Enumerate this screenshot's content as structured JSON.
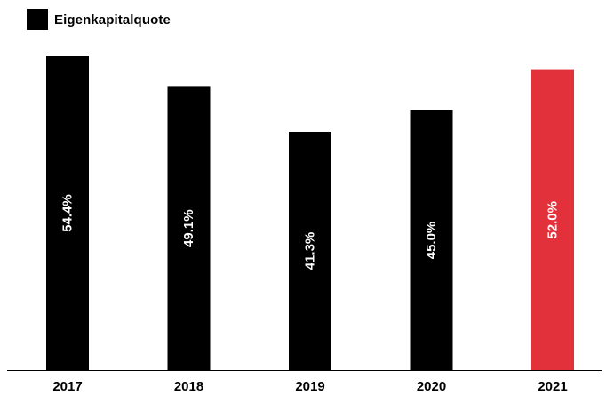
{
  "chart_data": {
    "type": "bar",
    "categories": [
      "2017",
      "2018",
      "2019",
      "2020",
      "2021"
    ],
    "series": [
      {
        "name": "Eigenkapitalquote",
        "values": [
          54.4,
          49.1,
          41.3,
          45.0,
          52.0
        ],
        "value_labels": [
          "54.4%",
          "49.1%",
          "41.3%",
          "45.0%",
          "52.0%"
        ]
      }
    ],
    "title": "",
    "xlabel": "",
    "ylabel": "",
    "ylim": [
      0,
      54.4
    ],
    "grid": false,
    "legend": "top-left",
    "colors": {
      "default": "#000000",
      "highlight": "#e3313b",
      "highlight_category": "2021"
    }
  }
}
